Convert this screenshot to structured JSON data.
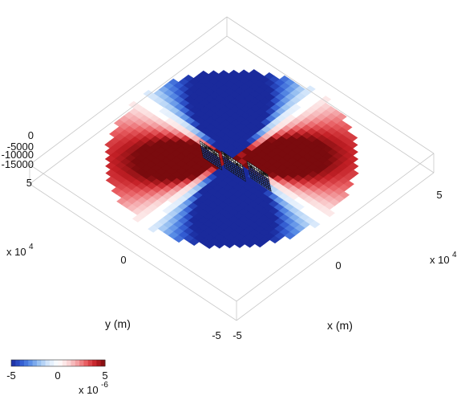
{
  "chart_data": {
    "type": "heatmap",
    "title": "",
    "xlabel": "x (m)",
    "ylabel": "y (m)",
    "x_ticks": [
      "-5",
      "0",
      "5"
    ],
    "y_ticks": [
      "-5",
      "0",
      "5"
    ],
    "x_multiplier": {
      "base": "x 10",
      "exponent": "4"
    },
    "y_multiplier": {
      "base": "x 10",
      "exponent": "4"
    },
    "z_ticks": [
      "0",
      "-5000",
      "-10000",
      "-15000"
    ],
    "xlim": [
      -50000,
      50000
    ],
    "ylim": [
      -50000,
      50000
    ],
    "zlim": [
      -15000,
      0
    ],
    "colorbar": {
      "ticks": [
        "-5",
        "0",
        "5"
      ],
      "multiplier": {
        "base": "x 10",
        "exponent": "-6"
      },
      "range": [
        -5e-06,
        5e-06
      ],
      "colors": [
        "#1a2a9c",
        "#2f57cf",
        "#5a8ee6",
        "#9cc3f2",
        "#d9e9fb",
        "#ffffff",
        "#fbdcdc",
        "#f4a3a6",
        "#e85c60",
        "#c42026",
        "#7a0b0e"
      ]
    },
    "surface_pattern": "four-lobed quadrupole: negative (blue) lobes along the fault-normal directions, positive (red) lobes between them",
    "fault_segments": [
      {
        "x0": -14000,
        "x1": -5000,
        "y": 1500
      },
      {
        "x0": -5000,
        "x1": 5000,
        "y": 0
      },
      {
        "x0": 5000,
        "x1": 15000,
        "y": -2500
      }
    ]
  }
}
